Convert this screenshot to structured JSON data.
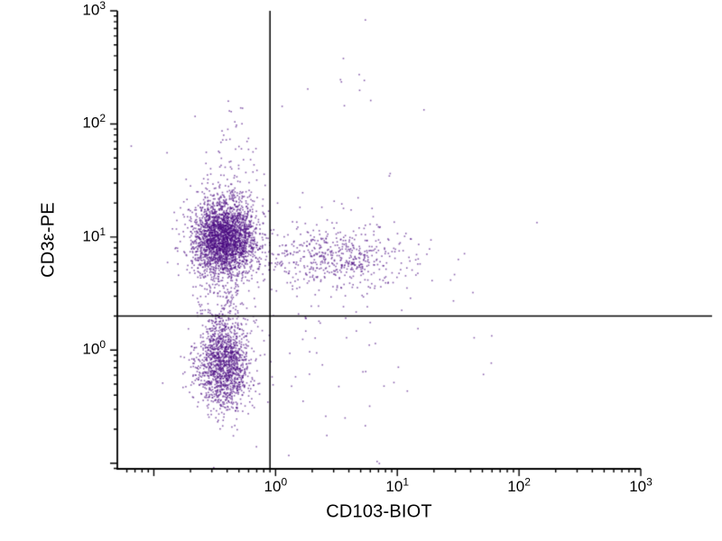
{
  "chart_data": {
    "type": "scatter",
    "subtype": "flow-cytometry-dot-plot",
    "title": "",
    "xlabel": "CD103-BIOT",
    "ylabel": "CD3ε-PE",
    "x_scale": "log",
    "y_scale": "log",
    "tick_base": "10",
    "x_tick_exponents": [
      0,
      1,
      2,
      3
    ],
    "y_tick_exponents": [
      0,
      1,
      2,
      3
    ],
    "xlim_log10": [
      -1.3,
      3
    ],
    "ylim_log10": [
      -1.05,
      3
    ],
    "grid": false,
    "legend": "none",
    "quadrant_gates": {
      "x_value": 0.9,
      "y_value": 2.0
    },
    "dot_color": "#4b0d82",
    "axis_color": "#000000",
    "background_color": "#ffffff",
    "seed": 7,
    "clusters": [
      {
        "name": "upper-left-dense-population",
        "n": 2600,
        "cx_log10": -0.42,
        "cy_log10": 1.0,
        "sx": 0.13,
        "sy": 0.17
      },
      {
        "name": "lower-left-dense-population",
        "n": 1400,
        "cx_log10": -0.42,
        "cy_log10": -0.12,
        "sx": 0.11,
        "sy": 0.2
      },
      {
        "name": "double-positive-population",
        "n": 550,
        "cx_log10": 0.5,
        "cy_log10": 0.82,
        "sx": 0.32,
        "sy": 0.14
      },
      {
        "name": "upper-left-vertical-tail",
        "n": 120,
        "cx_log10": -0.38,
        "cy_log10": 1.4,
        "sx": 0.12,
        "sy": 0.35
      },
      {
        "name": "left-mid-bridge",
        "n": 150,
        "cx_log10": -0.42,
        "cy_log10": 0.45,
        "sx": 0.12,
        "sy": 0.3
      },
      {
        "name": "lower-middle-sparse",
        "n": 60,
        "cx_log10": 0.4,
        "cy_log10": 0.0,
        "sx": 0.45,
        "sy": 0.45
      },
      {
        "name": "diffuse-background",
        "n": 40,
        "cx_log10": 0.3,
        "cy_log10": 1.0,
        "sx": 0.8,
        "sy": 0.8
      },
      {
        "name": "upper-middle-outliers",
        "n": 7,
        "cx_log10": 0.65,
        "cy_log10": 2.6,
        "sx": 0.1,
        "sy": 0.2
      }
    ]
  }
}
